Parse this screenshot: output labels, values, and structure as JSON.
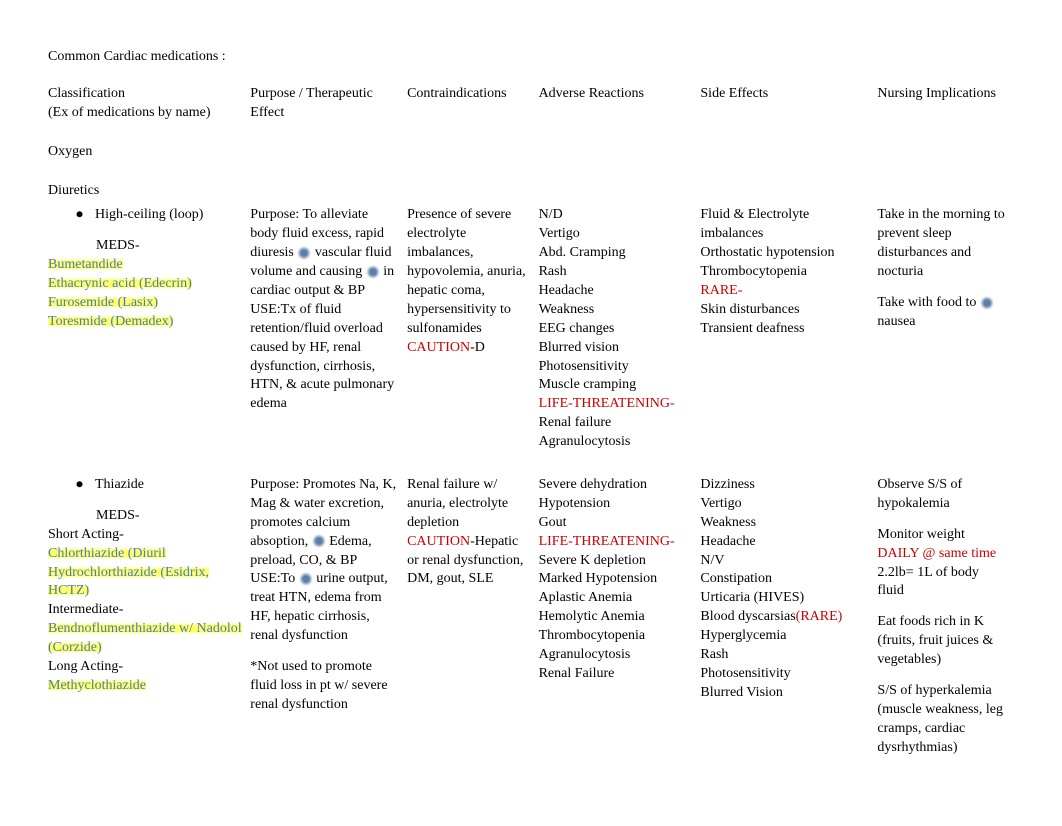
{
  "title": "Common Cardiac medications :",
  "headers": {
    "c1a": "Classification",
    "c1b": "(Ex of medications by name)",
    "c2": "Purpose / Therapeutic Effect",
    "c3": "Contraindications",
    "c4": "Adverse Reactions",
    "c5": "Side Effects",
    "c6": "Nursing Implications"
  },
  "oxygen": "Oxygen",
  "diuretics": "Diuretics",
  "loop": {
    "name": "High-ceiling (loop)",
    "meds_label": "MEDS-",
    "meds": [
      "Bumetandide",
      "Ethacrynic acid ",
      "Furosemide ",
      "Toresmide "
    ],
    "brands": [
      "",
      "(Edecrin)",
      "(Lasix)",
      "(Demadex)"
    ],
    "purpose_a": "Purpose:  To alleviate body fluid excess, rapid diuresis ",
    "purpose_b": " vascular fluid volume and causing ",
    "purpose_c": " in cardiac output & BP",
    "use": "USE:Tx of fluid retention/fluid overload caused by HF, renal dysfunction, cirrhosis, HTN, & acute pulmonary edema",
    "contra_a": "Presence of severe electrolyte imbalances, hypovolemia, anuria, hepatic coma, hypersensitivity to sulfonamides",
    "caution": "CAUTION",
    "contra_b": "-D",
    "adverse": [
      " N/D",
      "Vertigo",
      "Abd. Cramping",
      "Rash",
      "Headache",
      "Weakness",
      "EEG changes",
      "Blurred vision",
      "Photosensitivity",
      "Muscle cramping"
    ],
    "life": "LIFE-THREATENING-",
    "adverse2": [
      "Renal failure",
      "Agranulocytosis"
    ],
    "side_a": [
      "Fluid & Electrolyte imbalances",
      "Orthostatic hypotension",
      "Thrombocytopenia"
    ],
    "rare": "RARE-",
    "side_b": [
      "Skin disturbances",
      "Transient deafness"
    ],
    "nursing_a": "Take in the morning to prevent sleep disturbances and nocturia",
    "nursing_b": "Take with food to ",
    "nursing_c": " nausea"
  },
  "thiazide": {
    "name": "Thiazide",
    "meds_label": "MEDS-",
    "short": "Short Acting-",
    "short_meds": [
      "Chlorthiazide ",
      "Hydrochlorthiazide "
    ],
    "short_brands": [
      "(Diuril",
      "(Esidrix, HCTZ)"
    ],
    "inter": "Intermediate-",
    "inter_meds": [
      "Bendnoflumenthiazide w/ Nadolol "
    ],
    "inter_brands": [
      "(Corzide)"
    ],
    "long": "Long Acting-",
    "long_meds": [
      "Methyclothiazide"
    ],
    "purpose_a": "Purpose:  Promotes Na, K, Mag & water excretion, promotes calcium absoption, ",
    "purpose_b": " Edema, preload, CO, & BP",
    "use_a": "USE:To ",
    "use_b": " urine output, treat HTN, edema from HF, hepatic cirrhosis, renal dysfunction",
    "note": "*Not used to promote fluid loss in pt w/ severe renal dysfunction",
    "contra_a": "Renal failure w/ anuria, electrolyte depletion",
    "caution": "CAUTION",
    "contra_b": "-Hepatic or renal dysfunction, DM, gout, SLE",
    "adverse_a": [
      "Severe dehydration",
      "Hypotension",
      "Gout"
    ],
    "life": "LIFE-THREATENING-",
    "adverse_b": [
      "Severe K depletion",
      "Marked Hypotension",
      "Aplastic Anemia",
      "Hemolytic Anemia",
      "Thrombocytopenia",
      "Agranulocytosis",
      "Renal Failure"
    ],
    "side_a": [
      "Dizziness",
      "Vertigo",
      "Weakness",
      "Headache",
      "N/V",
      "Constipation",
      "Urticaria (HIVES)",
      "Blood dyscarsias"
    ],
    "rare": "(RARE)",
    "side_b": [
      "Hyperglycemia",
      "Rash",
      "Photosensitivity",
      "Blurred Vision"
    ],
    "nursing_a": "Observe S/S of hypokalemia",
    "nursing_b1": "Monitor weight ",
    "nursing_b2": "DAILY @ same time",
    "nursing_c": "2.2lb= 1L of body fluid",
    "nursing_d": "Eat foods rich in K (fruits, fruit juices & vegetables)",
    "nursing_e": "S/S of hyperkalemia (muscle weakness, leg cramps, cardiac dysrhythmias)"
  }
}
